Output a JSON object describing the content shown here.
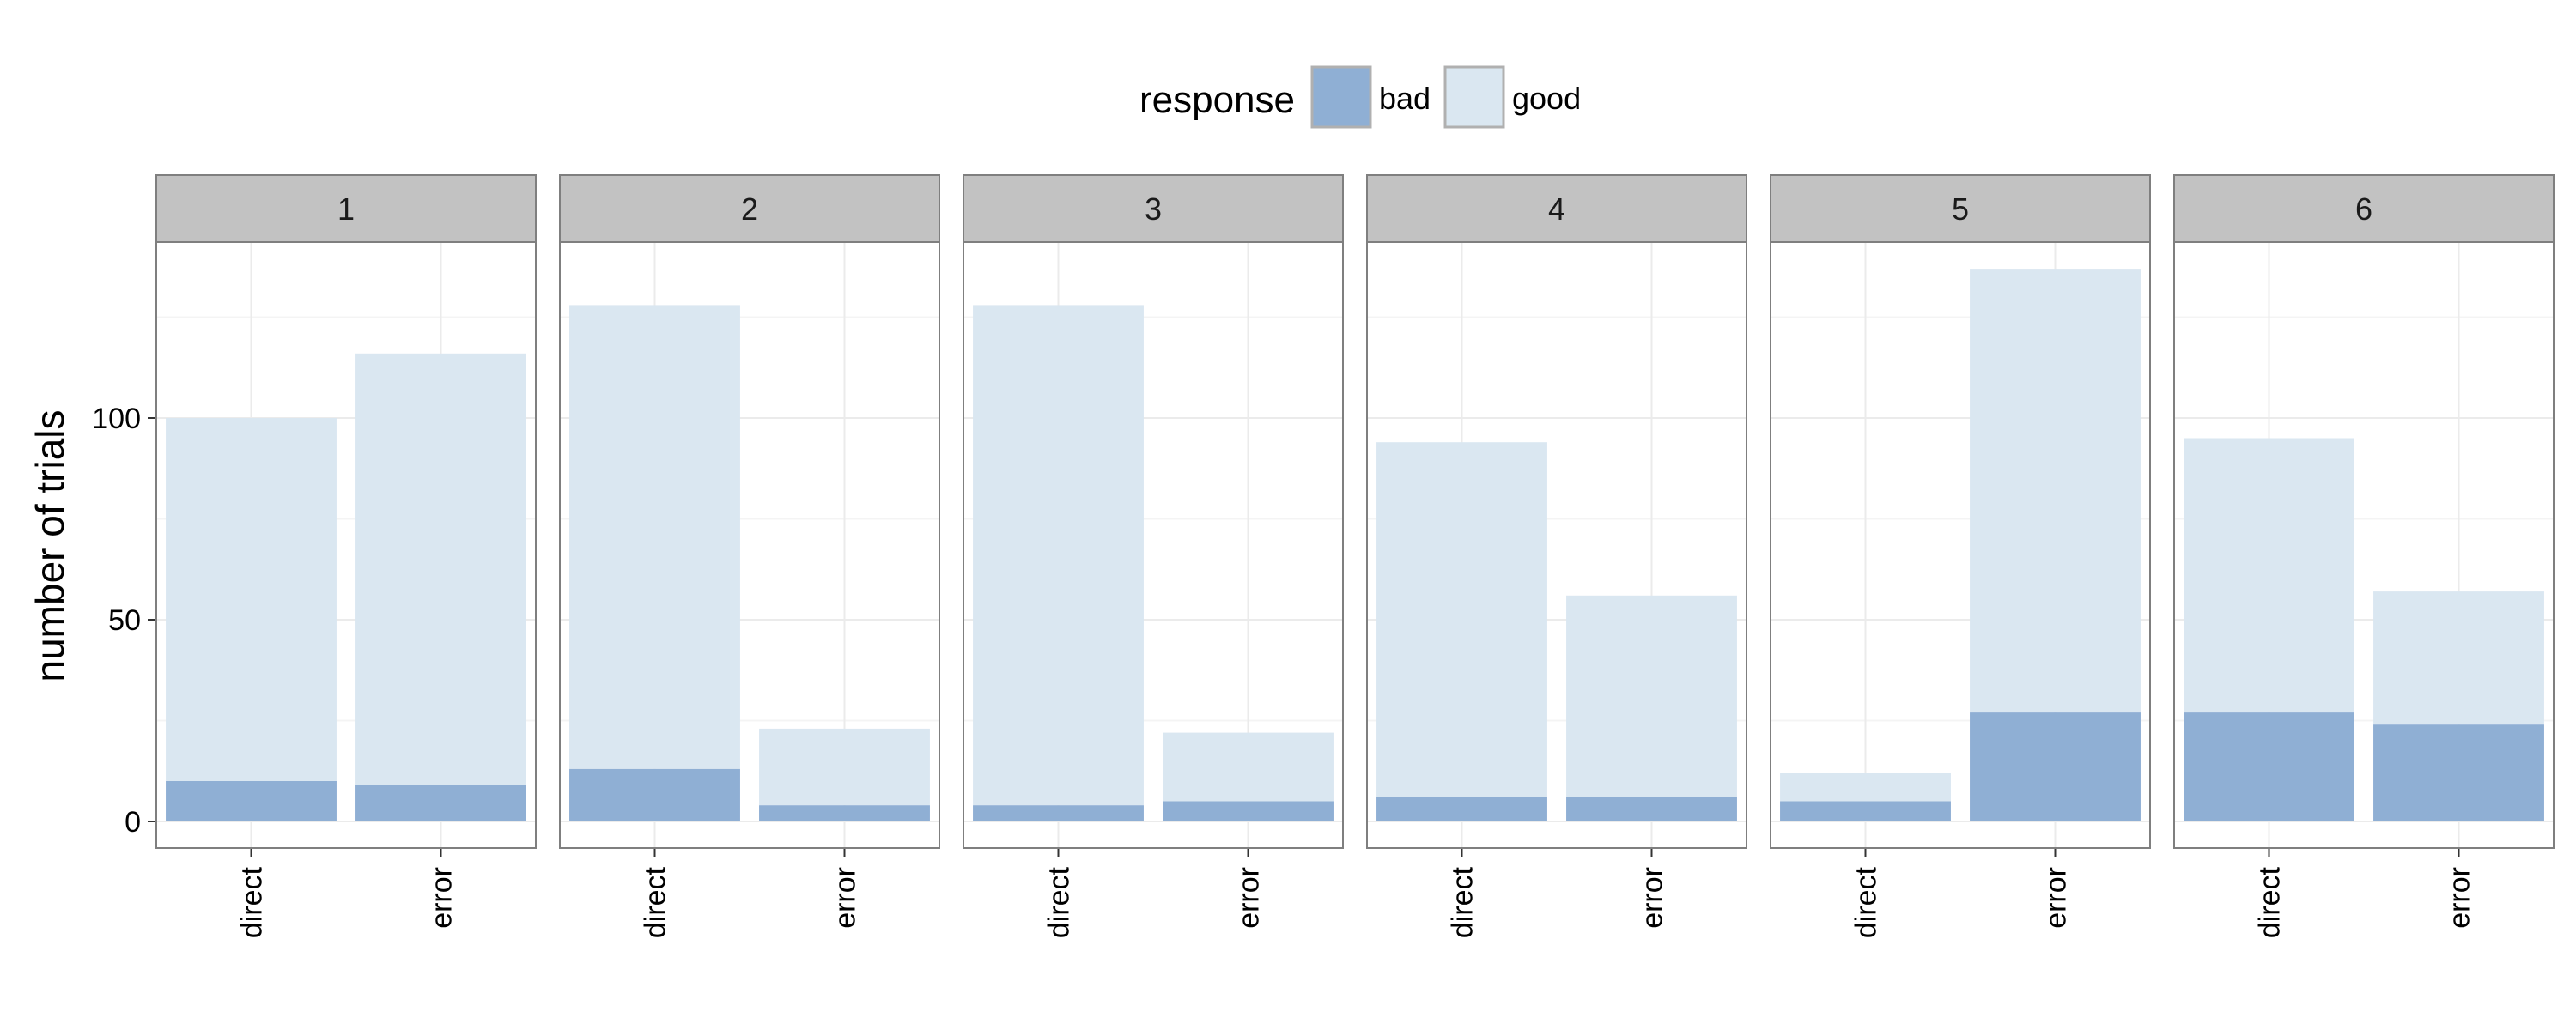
{
  "chart_data": {
    "type": "bar",
    "stacked": true,
    "facets": [
      "1",
      "2",
      "3",
      "4",
      "5",
      "6"
    ],
    "categories": [
      "direct",
      "error"
    ],
    "ylabel": "number of trials",
    "xlabel": "",
    "ylim": [
      0,
      143
    ],
    "yticks": [
      0,
      50,
      100
    ],
    "legend": {
      "title": "response",
      "position": "top",
      "items": [
        {
          "label": "bad",
          "color": "#8fafd4"
        },
        {
          "label": "good",
          "color": "#dae7f1"
        }
      ]
    },
    "panels": [
      {
        "facet": "1",
        "bad": [
          10,
          9
        ],
        "good": [
          90,
          107
        ]
      },
      {
        "facet": "2",
        "bad": [
          13,
          4
        ],
        "good": [
          115,
          19
        ]
      },
      {
        "facet": "3",
        "bad": [
          4,
          5
        ],
        "good": [
          124,
          17
        ]
      },
      {
        "facet": "4",
        "bad": [
          6,
          6
        ],
        "good": [
          88,
          50
        ]
      },
      {
        "facet": "5",
        "bad": [
          5,
          27
        ],
        "good": [
          7,
          110
        ]
      },
      {
        "facet": "6",
        "bad": [
          27,
          24
        ],
        "good": [
          68,
          33
        ]
      }
    ],
    "colors": {
      "bad": "#8fafd4",
      "good": "#dae7f1",
      "strip": "#c2c2c2",
      "panel_border": "#7f7f7f",
      "grid": "#ebebeb"
    }
  }
}
